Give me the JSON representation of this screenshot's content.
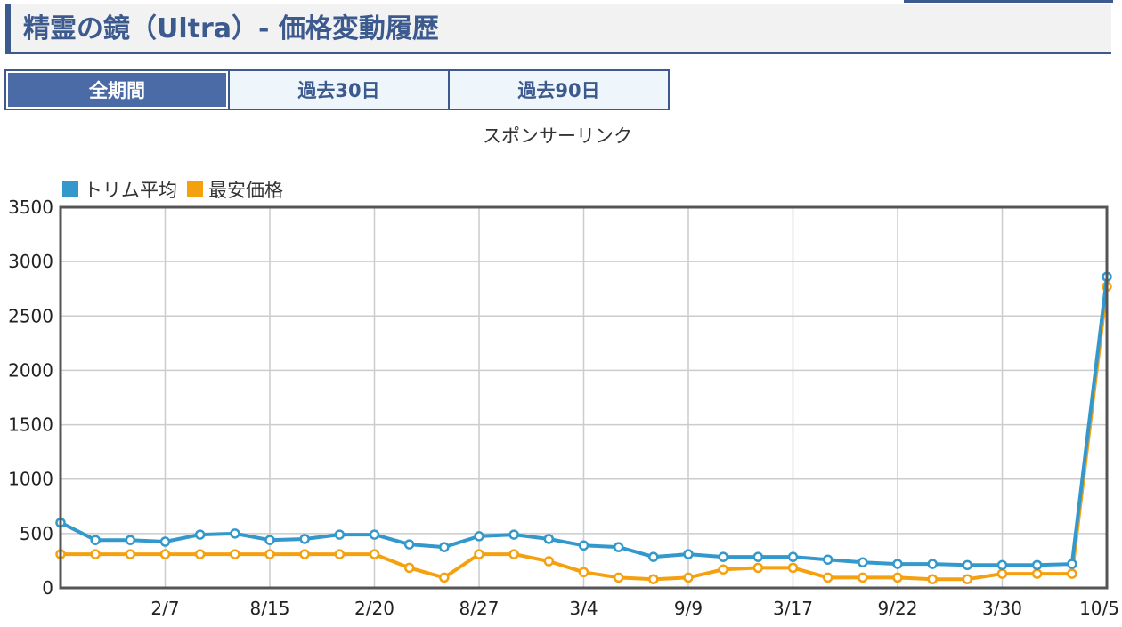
{
  "page": {
    "title": "精霊の鏡（Ultra）- 価格変動履歴",
    "tabs": [
      {
        "label": "全期間",
        "active": true
      },
      {
        "label": "過去30日",
        "active": false
      },
      {
        "label": "過去90日",
        "active": false
      }
    ],
    "sponsor": "スポンサーリンク"
  },
  "colors": {
    "accent": "#3d5a8e",
    "series_blue": "#3399cc",
    "series_orange": "#f5a00f",
    "grid": "#cccccc"
  },
  "chart_data": {
    "type": "line",
    "title": "",
    "xlabel": "",
    "ylabel": "",
    "ylim": [
      0,
      3500
    ],
    "yticks": [
      0,
      500,
      1000,
      1500,
      2000,
      2500,
      3000,
      3500
    ],
    "xtick_labels": [
      "2/7",
      "8/15",
      "2/20",
      "8/27",
      "3/4",
      "9/9",
      "3/17",
      "9/22",
      "3/30",
      "10/5"
    ],
    "legend_position": "top-left",
    "grid": true,
    "series": [
      {
        "name": "トリム平均",
        "color": "#3399cc",
        "values": [
          600,
          440,
          440,
          425,
          490,
          500,
          440,
          450,
          490,
          490,
          400,
          375,
          475,
          490,
          450,
          390,
          375,
          285,
          310,
          285,
          285,
          285,
          260,
          235,
          220,
          220,
          210,
          210,
          210,
          220,
          2860
        ]
      },
      {
        "name": "最安価格",
        "color": "#f5a00f",
        "values": [
          310,
          310,
          310,
          310,
          310,
          310,
          310,
          310,
          310,
          310,
          185,
          95,
          310,
          310,
          245,
          145,
          95,
          80,
          95,
          170,
          185,
          185,
          95,
          95,
          95,
          80,
          80,
          130,
          130,
          130,
          2770
        ]
      }
    ]
  }
}
